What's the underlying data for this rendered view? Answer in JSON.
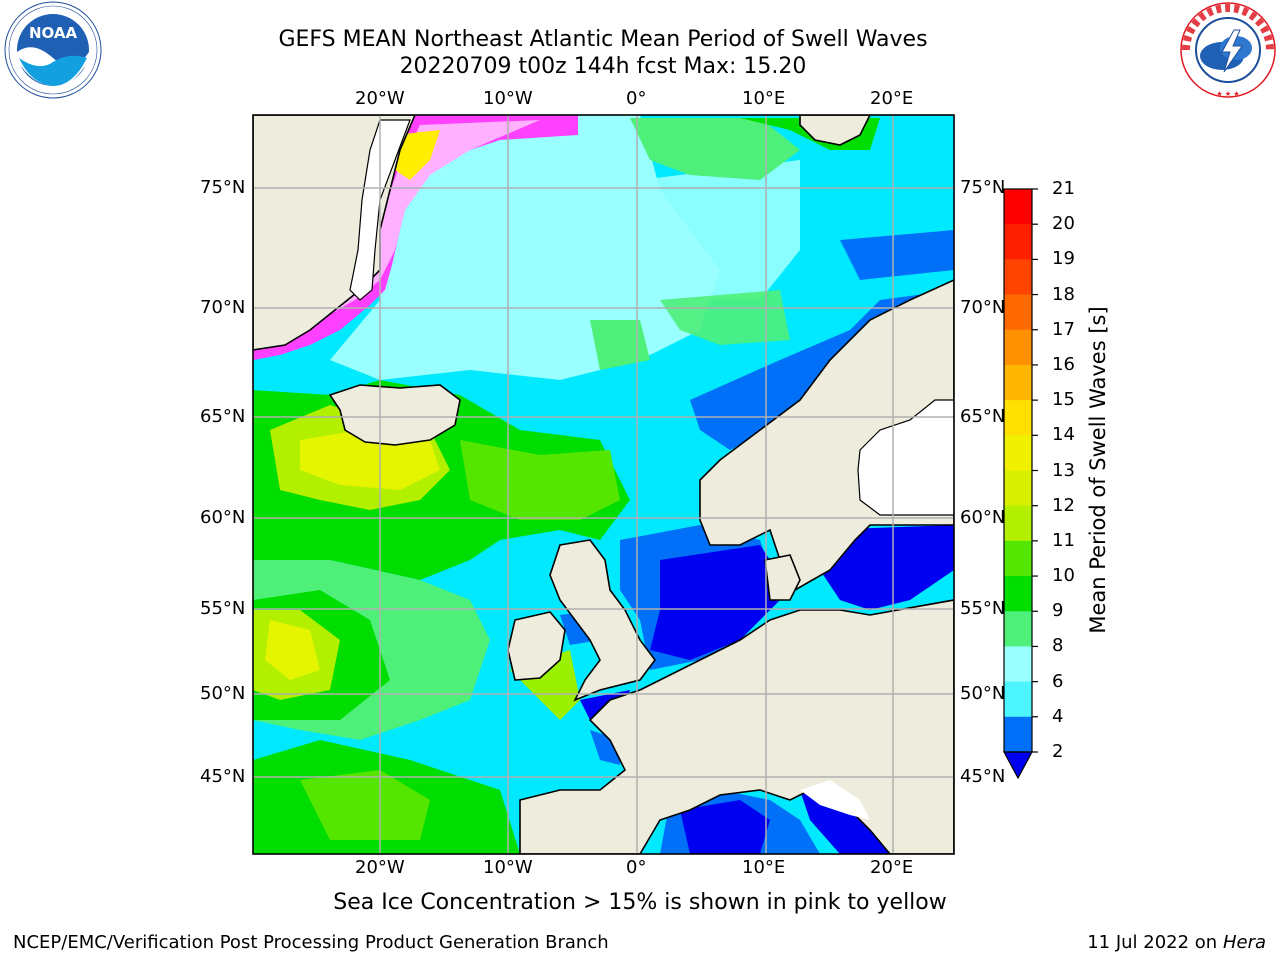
{
  "header": {
    "title_line1": "GEFS MEAN Northeast Atlantic Mean Period of Swell Waves",
    "title_line2": "20220709 t00z 144h fcst   Max: 15.20"
  },
  "logos": {
    "left": "NOAA",
    "left_ring": "NATIONAL OCEANIC AND ATMOSPHERIC ADMINISTRATION · U.S. DEPARTMENT OF COMMERCE",
    "right_ring": "NATIONAL WEATHER SERVICE"
  },
  "map": {
    "lon_labels": [
      "20°W",
      "10°W",
      "0°",
      "10°E",
      "20°E"
    ],
    "lat_labels": [
      "75°N",
      "70°N",
      "65°N",
      "60°N",
      "55°N",
      "50°N",
      "45°N"
    ],
    "colors": {
      "land": "#eeeddd",
      "ocean_cyan": "#00e9ff",
      "ocean_light": "#99ffff",
      "ocean_blue": "#0070f8",
      "ocean_deep": "#0000f0",
      "green": "#00dd00",
      "lightgreen": "#4ef07a",
      "yellowgreen": "#9bf000",
      "yellow": "#e5f500",
      "ice_pink": "#ff40ff",
      "ice_yellow": "#ffee00"
    }
  },
  "colorbar": {
    "label": "Mean Period of Swell Waves [s]",
    "ticks": [
      "21",
      "20",
      "19",
      "18",
      "17",
      "16",
      "15",
      "14",
      "13",
      "12",
      "11",
      "10",
      "9",
      "8",
      "6",
      "4",
      "2"
    ],
    "colors": [
      "#ff0000",
      "#ff2000",
      "#ff4400",
      "#ff6a00",
      "#ff9000",
      "#ffb600",
      "#ffe000",
      "#f0f000",
      "#d8f000",
      "#b2f000",
      "#55e600",
      "#00dd00",
      "#4ef07a",
      "#99ffff",
      "#4df6ff",
      "#00e9ff",
      "#0070f8"
    ],
    "under_color": "#0000f0"
  },
  "footer": {
    "note": "Sea Ice Concentration > 15% is shown in pink to yellow",
    "left": "NCEP/EMC/Verification Post Processing Product Generation Branch",
    "right_date": "11 Jul 2022 on ",
    "right_host": "Hera"
  }
}
